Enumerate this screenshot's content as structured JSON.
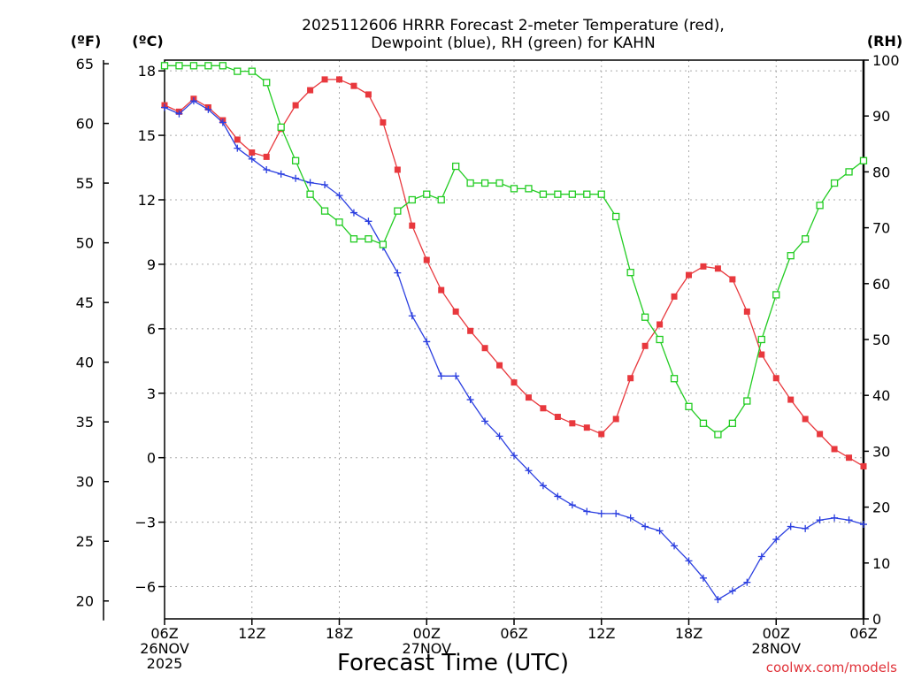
{
  "title": {
    "line1": "2025112606 HRRR Forecast 2-meter Temperature (red),",
    "line2": "Dewpoint (blue), RH (green) for KAHN"
  },
  "units": {
    "left_f": "(ºF)",
    "left_c": "(ºC)",
    "right": "(RH)"
  },
  "xaxis_title": "Forecast Time (UTC)",
  "credit": "coolwx.com/models",
  "colors": {
    "temperature": "#e8383d",
    "dewpoint": "#2b3fe0",
    "rh": "#22cc22",
    "grid": "#aaaaaa",
    "credit": "#e0333a"
  },
  "chart_data": {
    "type": "line",
    "title": "2025112606 HRRR Forecast 2-meter Temperature (red), Dewpoint (blue), RH (green) for KAHN",
    "xlabel": "Forecast Time (UTC)",
    "ylabel_left_c": "(ºC)",
    "ylabel_left_f": "(ºF)",
    "ylabel_right": "(RH)",
    "x": [
      0,
      1,
      2,
      3,
      4,
      5,
      6,
      7,
      8,
      9,
      10,
      11,
      12,
      13,
      14,
      15,
      16,
      17,
      18,
      19,
      20,
      21,
      22,
      23,
      24,
      25,
      26,
      27,
      28,
      29,
      30,
      31,
      32,
      33,
      34,
      35,
      36,
      37,
      38,
      39,
      40,
      41,
      42,
      43,
      44,
      45,
      46,
      47,
      48
    ],
    "x_units": "forecast hour from 2025-11-26 06Z",
    "xlim": [
      0,
      48
    ],
    "c_lim": [
      -7.5,
      18.5
    ],
    "rh_lim": [
      0,
      100
    ],
    "c_ticks": [
      18,
      15,
      12,
      9,
      6,
      3,
      0,
      -3,
      -6
    ],
    "c_tick_labels": [
      "18",
      "15",
      "12",
      "9",
      "6",
      "3",
      "0",
      "−3",
      "−6"
    ],
    "f_ticks": [
      65,
      60,
      55,
      50,
      45,
      40,
      35,
      30,
      25,
      20
    ],
    "rh_ticks": [
      100,
      90,
      80,
      70,
      60,
      50,
      40,
      30,
      20,
      10,
      0
    ],
    "x_ticks": [
      {
        "hour": 0,
        "lines": [
          "06Z",
          "26NOV",
          "2025"
        ]
      },
      {
        "hour": 6,
        "lines": [
          "12Z"
        ]
      },
      {
        "hour": 12,
        "lines": [
          "18Z"
        ]
      },
      {
        "hour": 18,
        "lines": [
          "00Z",
          "27NOV"
        ]
      },
      {
        "hour": 24,
        "lines": [
          "06Z"
        ]
      },
      {
        "hour": 30,
        "lines": [
          "12Z"
        ]
      },
      {
        "hour": 36,
        "lines": [
          "18Z"
        ]
      },
      {
        "hour": 42,
        "lines": [
          "00Z",
          "28NOV"
        ]
      },
      {
        "hour": 48,
        "lines": [
          "06Z"
        ]
      }
    ],
    "series": [
      {
        "name": "Temperature",
        "axis": "c",
        "color": "#e8383d",
        "marker": "filled-square",
        "values": [
          16.4,
          16.1,
          16.7,
          16.3,
          15.7,
          14.8,
          14.2,
          14.0,
          15.3,
          16.4,
          17.1,
          17.6,
          17.6,
          17.3,
          16.9,
          15.6,
          13.4,
          10.8,
          9.2,
          7.8,
          6.8,
          5.9,
          5.1,
          4.3,
          3.5,
          2.8,
          2.3,
          1.9,
          1.6,
          1.4,
          1.1,
          1.8,
          3.7,
          5.2,
          6.2,
          7.5,
          8.5,
          8.9,
          8.8,
          8.3,
          6.8,
          4.8,
          3.7,
          2.7,
          1.8,
          1.1,
          0.4,
          0.0,
          -0.4
        ]
      },
      {
        "name": "Dewpoint",
        "axis": "c",
        "color": "#2b3fe0",
        "marker": "plus",
        "values": [
          16.3,
          16.0,
          16.6,
          16.2,
          15.6,
          14.4,
          13.9,
          13.4,
          13.2,
          13.0,
          12.8,
          12.7,
          12.2,
          11.4,
          11.0,
          9.8,
          8.6,
          6.6,
          5.4,
          3.8,
          3.8,
          2.7,
          1.7,
          1.0,
          0.1,
          -0.6,
          -1.3,
          -1.8,
          -2.2,
          -2.5,
          -2.6,
          -2.6,
          -2.8,
          -3.2,
          -3.4,
          -4.1,
          -4.8,
          -5.6,
          -6.6,
          -6.2,
          -5.8,
          -4.6,
          -3.8,
          -3.2,
          -3.3,
          -2.9,
          -2.8,
          -2.9,
          -3.1
        ]
      },
      {
        "name": "RH",
        "axis": "rh",
        "color": "#22cc22",
        "marker": "open-square",
        "values": [
          99,
          99,
          99,
          99,
          99,
          98,
          98,
          96,
          88,
          82,
          76,
          73,
          71,
          68,
          68,
          67,
          73,
          75,
          76,
          75,
          81,
          78,
          78,
          78,
          77,
          77,
          76,
          76,
          76,
          76,
          76,
          72,
          62,
          54,
          50,
          43,
          38,
          35,
          33,
          35,
          39,
          50,
          58,
          65,
          68,
          74,
          78,
          80,
          82
        ]
      }
    ]
  }
}
